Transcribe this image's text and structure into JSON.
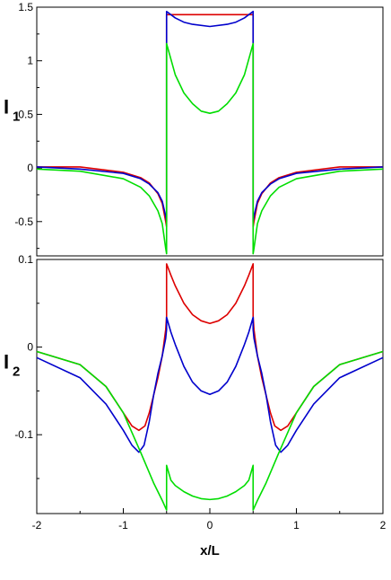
{
  "chart_data": [
    {
      "type": "line",
      "ylabel_main": "I",
      "ylabel_sub": "1",
      "xlim": [
        -2,
        2
      ],
      "ylim": [
        -0.82,
        1.5
      ],
      "yticks": [
        1.5,
        1,
        0.5,
        0,
        -0.5
      ],
      "ytick_labels": [
        "1.5",
        "1",
        "0.5",
        "0",
        "-0.5"
      ],
      "series": [
        {
          "color": "#dd0000",
          "x": [
            -2,
            -1.5,
            -1,
            -0.8,
            -0.7,
            -0.6,
            -0.55,
            -0.51,
            -0.5,
            -0.5,
            -0.3,
            0,
            0.3,
            0.5,
            0.5,
            0.51,
            0.55,
            0.6,
            0.7,
            0.8,
            1,
            1.5,
            2
          ],
          "y": [
            0.01,
            0.01,
            -0.04,
            -0.09,
            -0.14,
            -0.24,
            -0.33,
            -0.5,
            -0.55,
            1.43,
            1.43,
            1.43,
            1.43,
            1.43,
            -0.55,
            -0.5,
            -0.33,
            -0.24,
            -0.14,
            -0.09,
            -0.04,
            0.01,
            0.01
          ]
        },
        {
          "color": "#0000cc",
          "x": [
            -2,
            -1.5,
            -1,
            -0.8,
            -0.7,
            -0.6,
            -0.55,
            -0.51,
            -0.5,
            -0.5,
            -0.4,
            -0.3,
            -0.2,
            0,
            0.2,
            0.3,
            0.4,
            0.5,
            0.5,
            0.51,
            0.55,
            0.6,
            0.7,
            0.8,
            1,
            1.5,
            2
          ],
          "y": [
            0.01,
            -0.01,
            -0.05,
            -0.1,
            -0.15,
            -0.23,
            -0.31,
            -0.45,
            -0.5,
            1.46,
            1.4,
            1.36,
            1.34,
            1.32,
            1.34,
            1.36,
            1.4,
            1.46,
            -0.5,
            -0.45,
            -0.31,
            -0.23,
            -0.15,
            -0.1,
            -0.05,
            -0.01,
            0.01
          ]
        },
        {
          "color": "#00dd00",
          "x": [
            -2,
            -1.5,
            -1,
            -0.8,
            -0.7,
            -0.6,
            -0.55,
            -0.51,
            -0.5,
            -0.5,
            -0.4,
            -0.3,
            -0.2,
            -0.1,
            0,
            0.1,
            0.2,
            0.3,
            0.4,
            0.5,
            0.5,
            0.51,
            0.55,
            0.6,
            0.7,
            0.8,
            1,
            1.5,
            2
          ],
          "y": [
            -0.01,
            -0.03,
            -0.1,
            -0.18,
            -0.26,
            -0.4,
            -0.52,
            -0.75,
            -0.8,
            1.16,
            0.87,
            0.7,
            0.6,
            0.53,
            0.51,
            0.53,
            0.6,
            0.7,
            0.87,
            1.16,
            -0.8,
            -0.75,
            -0.52,
            -0.4,
            -0.26,
            -0.18,
            -0.1,
            -0.03,
            -0.01
          ]
        }
      ]
    },
    {
      "type": "line",
      "ylabel_main": "I",
      "ylabel_sub": "2",
      "xlabel": "x/L",
      "xlim": [
        -2,
        2
      ],
      "ylim": [
        -0.19,
        0.1
      ],
      "xticks": [
        -2,
        -1,
        0,
        1,
        2
      ],
      "xtick_labels": [
        "-2",
        "-1",
        "0",
        "1",
        "2"
      ],
      "yticks": [
        0.1,
        0,
        -0.1
      ],
      "ytick_labels": [
        "0.1",
        "0",
        "-0.1"
      ],
      "series": [
        {
          "color": "#dd0000",
          "x": [
            -2,
            -1.5,
            -1.2,
            -1.0,
            -0.9,
            -0.82,
            -0.75,
            -0.7,
            -0.65,
            -0.6,
            -0.55,
            -0.51,
            -0.5,
            -0.5,
            -0.45,
            -0.4,
            -0.3,
            -0.2,
            -0.1,
            0,
            0.1,
            0.2,
            0.3,
            0.4,
            0.45,
            0.5,
            0.5,
            0.51,
            0.55,
            0.6,
            0.65,
            0.7,
            0.75,
            0.82,
            0.9,
            1.0,
            1.2,
            1.5,
            2
          ],
          "y": [
            -0.005,
            -0.02,
            -0.045,
            -0.075,
            -0.09,
            -0.095,
            -0.09,
            -0.075,
            -0.055,
            -0.035,
            -0.01,
            0.02,
            0.035,
            0.095,
            0.082,
            0.07,
            0.05,
            0.037,
            0.03,
            0.027,
            0.03,
            0.037,
            0.05,
            0.07,
            0.082,
            0.095,
            0.035,
            0.02,
            -0.01,
            -0.035,
            -0.055,
            -0.075,
            -0.09,
            -0.095,
            -0.09,
            -0.075,
            -0.045,
            -0.02,
            -0.005
          ]
        },
        {
          "color": "#0000cc",
          "x": [
            -2,
            -1.5,
            -1.2,
            -1.0,
            -0.9,
            -0.82,
            -0.76,
            -0.7,
            -0.65,
            -0.6,
            -0.55,
            -0.51,
            -0.5,
            -0.5,
            -0.45,
            -0.4,
            -0.3,
            -0.2,
            -0.1,
            0,
            0.1,
            0.2,
            0.3,
            0.4,
            0.45,
            0.5,
            0.5,
            0.51,
            0.55,
            0.6,
            0.65,
            0.7,
            0.76,
            0.82,
            0.9,
            1.0,
            1.2,
            1.5,
            2
          ],
          "y": [
            -0.012,
            -0.035,
            -0.065,
            -0.095,
            -0.112,
            -0.12,
            -0.112,
            -0.085,
            -0.055,
            -0.03,
            -0.01,
            0.01,
            0.02,
            0.034,
            0.017,
            0.003,
            -0.022,
            -0.04,
            -0.05,
            -0.054,
            -0.05,
            -0.04,
            -0.022,
            0.003,
            0.017,
            0.034,
            0.02,
            0.01,
            -0.01,
            -0.03,
            -0.055,
            -0.085,
            -0.112,
            -0.12,
            -0.112,
            -0.095,
            -0.065,
            -0.035,
            -0.012
          ]
        },
        {
          "color": "#00dd00",
          "x": [
            -2,
            -1.5,
            -1.2,
            -1.0,
            -0.8,
            -0.65,
            -0.55,
            -0.5,
            -0.5,
            -0.45,
            -0.4,
            -0.3,
            -0.2,
            -0.1,
            0,
            0.1,
            0.2,
            0.3,
            0.4,
            0.45,
            0.5,
            0.5,
            0.55,
            0.65,
            0.8,
            1.0,
            1.2,
            1.5,
            2
          ],
          "y": [
            -0.005,
            -0.02,
            -0.045,
            -0.075,
            -0.12,
            -0.155,
            -0.175,
            -0.186,
            -0.135,
            -0.152,
            -0.158,
            -0.165,
            -0.17,
            -0.173,
            -0.174,
            -0.173,
            -0.17,
            -0.165,
            -0.158,
            -0.152,
            -0.135,
            -0.186,
            -0.175,
            -0.155,
            -0.12,
            -0.075,
            -0.045,
            -0.02,
            -0.005
          ]
        }
      ]
    }
  ]
}
